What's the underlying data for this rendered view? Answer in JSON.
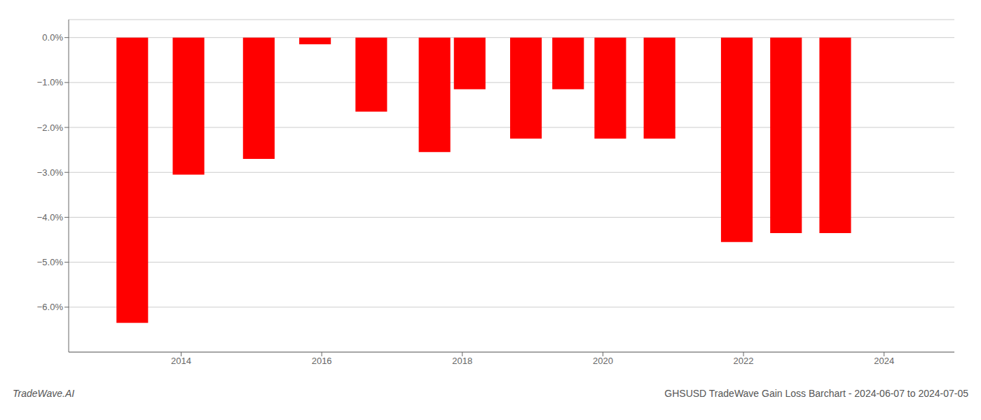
{
  "chart_data": {
    "type": "bar",
    "title": "GHSUSD TradeWave Gain Loss Barchart - 2024-06-07 to 2024-07-05",
    "annotations": [
      "TradeWave.AI"
    ],
    "x": [
      2013.3,
      2014.1,
      2015.1,
      2015.9,
      2016.7,
      2017.6,
      2018.1,
      2018.9,
      2019.5,
      2020.1,
      2020.8,
      2021.9,
      2022.6,
      2023.3
    ],
    "values": [
      -6.35,
      -3.05,
      -2.7,
      -0.15,
      -1.65,
      -2.55,
      -1.15,
      -2.25,
      -1.15,
      -2.25,
      -2.25,
      -4.55,
      -4.35,
      -4.35
    ],
    "color": "#ff0000",
    "xlim": [
      2012.4,
      2025.0
    ],
    "xticks": [
      2014,
      2016,
      2018,
      2020,
      2022,
      2024
    ],
    "ylim": [
      -7.0,
      0.4
    ],
    "yticks": [
      {
        "value": 0.0,
        "label": "0.0%"
      },
      {
        "value": -1.0,
        "label": "−1.0%"
      },
      {
        "value": -2.0,
        "label": "−2.0%"
      },
      {
        "value": -3.0,
        "label": "−3.0%"
      },
      {
        "value": -4.0,
        "label": "−4.0%"
      },
      {
        "value": -5.0,
        "label": "−5.0%"
      },
      {
        "value": -6.0,
        "label": "−6.0%"
      }
    ],
    "grid": "y"
  }
}
